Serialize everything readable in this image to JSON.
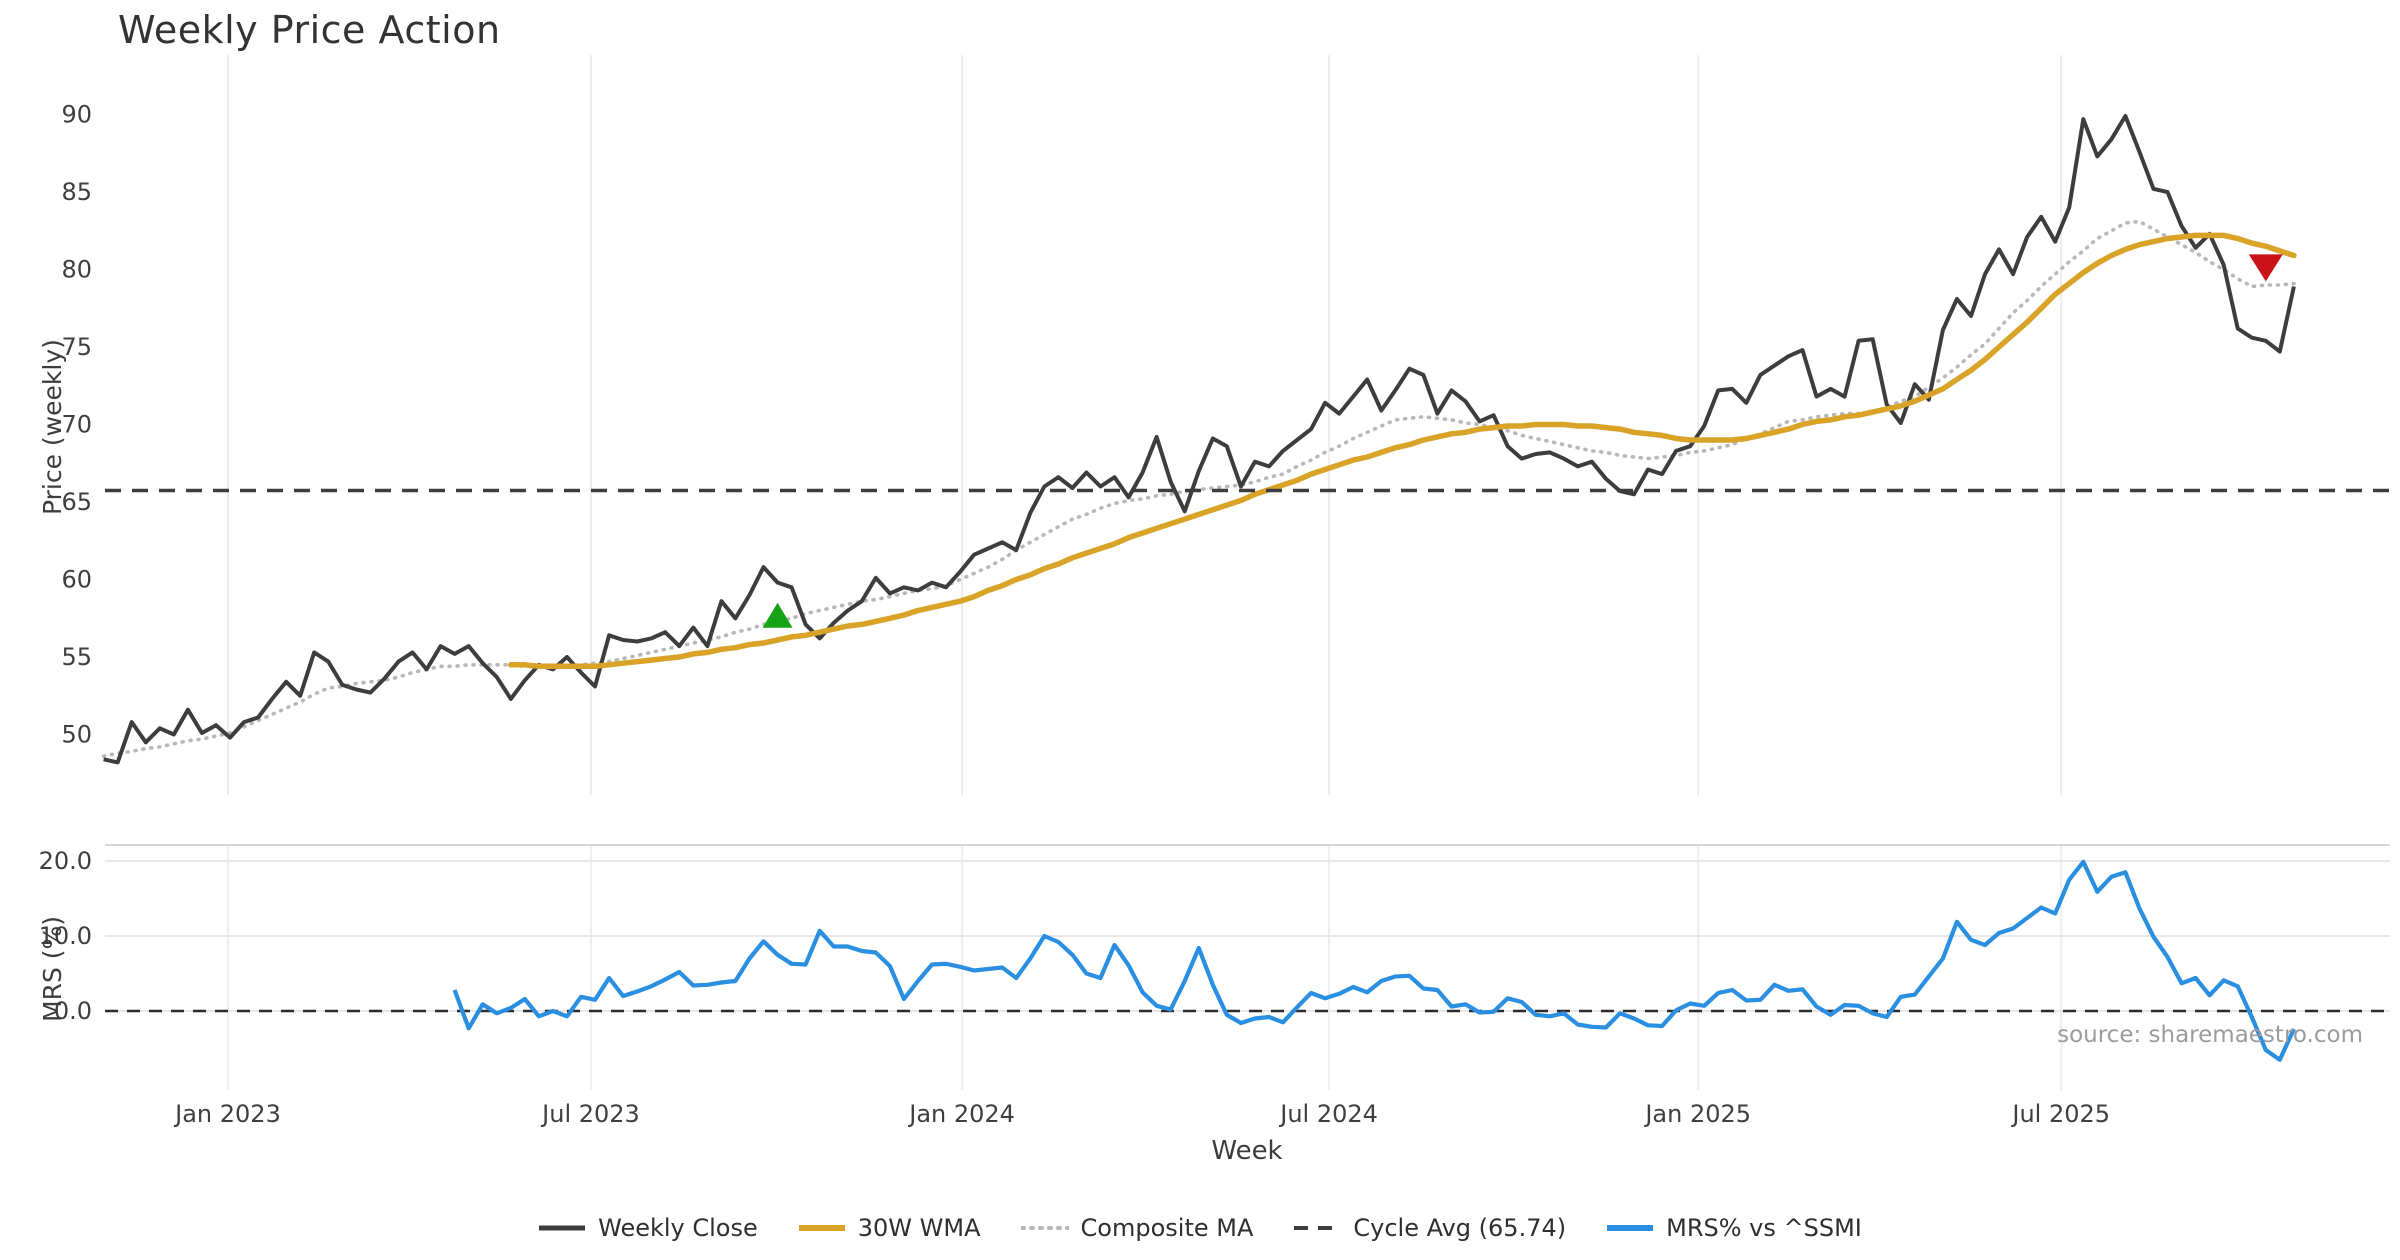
{
  "title": "Weekly Price Action",
  "xlabel": "Week",
  "source": "source: sharemaestro.com",
  "price_panel": {
    "ylabel": "Price (weekly)",
    "yticks": [
      90,
      85,
      80,
      75,
      70,
      65,
      60,
      55,
      50
    ]
  },
  "mrs_panel": {
    "ylabel": "MRS (%)",
    "ytick_labels": [
      "20.0",
      "10.0",
      "0.0"
    ],
    "ytick_values": [
      20,
      10,
      0
    ]
  },
  "xticks": [
    {
      "label": "Jan 2023",
      "week": 8.857
    },
    {
      "label": "Jul 2023",
      "week": 34.714
    },
    {
      "label": "Jan 2024",
      "week": 61.143
    },
    {
      "label": "Jul 2024",
      "week": 87.286
    },
    {
      "label": "Jan 2025",
      "week": 113.571
    },
    {
      "label": "Jul 2025",
      "week": 139.429
    }
  ],
  "legend": [
    {
      "label": "Weekly Close",
      "color": "#3d3d3d",
      "dash": "",
      "width": 5
    },
    {
      "label": "30W WMA",
      "color": "#d8a327",
      "dash": "",
      "width": 6
    },
    {
      "label": "Composite MA",
      "color": "#b8b8b8",
      "dash": "2 7",
      "width": 4
    },
    {
      "label": "Cycle Avg (65.74)",
      "color": "#3d3d3d",
      "dash": "14 10",
      "width": 4
    },
    {
      "label": "MRS% vs ^SSMI",
      "color": "#2a8fe0",
      "dash": "",
      "width": 6
    }
  ],
  "chart_data": [
    {
      "type": "line",
      "title": "Weekly Price Action",
      "ylabel": "Price (weekly)",
      "ylim": [
        47.0,
        94.0
      ],
      "x_axis": {
        "label": "Week",
        "unit": "weekly index, week 0 = first plotted week (late Oct 2022)",
        "tick_weeks": [
          8.857,
          34.714,
          61.143,
          87.286,
          113.571,
          139.429
        ],
        "tick_labels": [
          "Jan 2023",
          "Jul 2023",
          "Jan 2024",
          "Jul 2024",
          "Jan 2025",
          "Jul 2025"
        ]
      },
      "grid": "vertical-only",
      "series": [
        {
          "name": "Weekly Close",
          "color": "#3d3d3d",
          "style": "solid",
          "start_week": 0,
          "values": [
            48.4,
            48.2,
            50.8,
            49.5,
            50.4,
            50.0,
            51.6,
            50.1,
            50.6,
            49.8,
            50.8,
            51.1,
            52.3,
            53.4,
            52.5,
            55.3,
            54.7,
            53.2,
            52.9,
            52.7,
            53.6,
            54.7,
            55.3,
            54.2,
            55.7,
            55.2,
            55.7,
            54.6,
            53.7,
            52.3,
            53.5,
            54.5,
            54.2,
            55.0,
            54.0,
            53.1,
            56.4,
            56.1,
            56.0,
            56.2,
            56.6,
            55.7,
            56.9,
            55.7,
            58.6,
            57.5,
            59.0,
            60.8,
            59.8,
            59.5,
            57.1,
            56.2,
            57.2,
            58.0,
            58.6,
            60.1,
            59.1,
            59.5,
            59.3,
            59.8,
            59.5,
            60.5,
            61.6,
            62.0,
            62.4,
            61.9,
            64.3,
            66.0,
            66.6,
            65.9,
            66.9,
            66.0,
            66.6,
            65.3,
            66.9,
            69.2,
            66.3,
            64.4,
            67.0,
            69.1,
            68.6,
            66.0,
            67.6,
            67.3,
            68.3,
            69.0,
            69.7,
            71.4,
            70.7,
            71.8,
            72.9,
            70.9,
            72.2,
            73.6,
            73.2,
            70.7,
            72.2,
            71.5,
            70.2,
            70.6,
            68.6,
            67.8,
            68.1,
            68.2,
            67.8,
            67.3,
            67.6,
            66.5,
            65.7,
            65.5,
            67.1,
            66.8,
            68.3,
            68.6,
            69.9,
            72.2,
            72.3,
            71.4,
            73.2,
            73.8,
            74.4,
            74.8,
            71.8,
            72.3,
            71.8,
            75.4,
            75.5,
            71.3,
            70.1,
            72.6,
            71.6,
            76.1,
            78.1,
            77.0,
            79.7,
            81.3,
            79.7,
            82.1,
            83.4,
            81.8,
            84.0,
            89.7,
            87.3,
            88.4,
            89.9,
            87.6,
            85.2,
            85.0,
            82.8,
            81.4,
            82.3,
            80.3,
            76.2,
            75.6,
            75.4,
            74.7,
            78.9
          ]
        },
        {
          "name": "30W WMA",
          "color": "#d8a327",
          "style": "solid",
          "start_week": 29,
          "values": [
            54.5,
            54.5,
            54.4,
            54.4,
            54.4,
            54.4,
            54.4,
            54.5,
            54.6,
            54.7,
            54.8,
            54.9,
            55.0,
            55.2,
            55.3,
            55.5,
            55.6,
            55.8,
            55.9,
            56.1,
            56.3,
            56.4,
            56.6,
            56.8,
            57.0,
            57.1,
            57.3,
            57.5,
            57.7,
            58.0,
            58.2,
            58.4,
            58.6,
            58.9,
            59.3,
            59.6,
            60.0,
            60.3,
            60.7,
            61.0,
            61.4,
            61.7,
            62.0,
            62.3,
            62.7,
            63.0,
            63.3,
            63.6,
            63.9,
            64.2,
            64.5,
            64.8,
            65.1,
            65.5,
            65.8,
            66.1,
            66.4,
            66.8,
            67.1,
            67.4,
            67.7,
            67.9,
            68.2,
            68.5,
            68.7,
            69.0,
            69.2,
            69.4,
            69.5,
            69.7,
            69.8,
            69.9,
            69.9,
            70.0,
            70.0,
            70.0,
            69.9,
            69.9,
            69.8,
            69.7,
            69.5,
            69.4,
            69.3,
            69.1,
            69.0,
            69.0,
            69.0,
            69.0,
            69.1,
            69.3,
            69.5,
            69.7,
            70.0,
            70.2,
            70.3,
            70.5,
            70.6,
            70.8,
            71.0,
            71.2,
            71.5,
            71.9,
            72.3,
            72.9,
            73.5,
            74.2,
            75.0,
            75.8,
            76.6,
            77.5,
            78.4,
            79.1,
            79.8,
            80.4,
            80.9,
            81.3,
            81.6,
            81.8,
            82.0,
            82.1,
            82.2,
            82.2,
            82.2,
            82.0,
            81.7,
            81.5,
            81.2,
            80.9
          ]
        },
        {
          "name": "Composite MA",
          "color": "#b8b8b8",
          "style": "dotted",
          "start_week": 0,
          "values": [
            48.6,
            48.8,
            48.9,
            49.1,
            49.2,
            49.4,
            49.6,
            49.7,
            49.9,
            50.1,
            50.5,
            50.9,
            51.3,
            51.7,
            52.1,
            52.6,
            53.0,
            53.1,
            53.3,
            53.4,
            53.5,
            53.7,
            54.0,
            54.2,
            54.4,
            54.4,
            54.5,
            54.5,
            54.5,
            54.5,
            54.4,
            54.4,
            54.3,
            54.4,
            54.5,
            54.6,
            54.7,
            54.9,
            55.1,
            55.3,
            55.5,
            55.7,
            55.9,
            56.1,
            56.3,
            56.6,
            56.8,
            57.1,
            57.3,
            57.5,
            57.8,
            58.0,
            58.2,
            58.4,
            58.6,
            58.7,
            58.9,
            59.1,
            59.3,
            59.4,
            59.6,
            60.0,
            60.4,
            60.8,
            61.3,
            61.9,
            62.4,
            62.9,
            63.4,
            63.9,
            64.2,
            64.6,
            64.9,
            65.1,
            65.2,
            65.4,
            65.5,
            65.7,
            65.8,
            65.9,
            66.0,
            66.1,
            66.3,
            66.6,
            66.8,
            67.3,
            67.7,
            68.2,
            68.6,
            69.1,
            69.5,
            69.9,
            70.3,
            70.4,
            70.5,
            70.4,
            70.3,
            70.1,
            70.0,
            69.8,
            69.6,
            69.3,
            69.1,
            68.9,
            68.7,
            68.5,
            68.3,
            68.2,
            68.0,
            67.9,
            67.8,
            67.9,
            68.0,
            68.2,
            68.3,
            68.5,
            68.7,
            69.1,
            69.4,
            69.8,
            70.2,
            70.3,
            70.5,
            70.6,
            70.7,
            70.7,
            70.8,
            71.1,
            71.5,
            71.8,
            72.4,
            73.0,
            73.7,
            74.5,
            75.2,
            76.2,
            77.2,
            78.0,
            78.9,
            79.7,
            80.5,
            81.2,
            82.0,
            82.5,
            83.0,
            83.1,
            82.6,
            82.1,
            81.6,
            81.1,
            80.5,
            80.0,
            79.4,
            78.9,
            79.0,
            79.0,
            79.1
          ]
        },
        {
          "name": "Cycle Avg",
          "color": "#3d3d3d",
          "style": "dashed",
          "constant_value": 65.74
        }
      ],
      "markers": [
        {
          "type": "triangle-up",
          "color": "#17a317",
          "week": 48,
          "value": 57.6
        },
        {
          "type": "triangle-down",
          "color": "#cb1118",
          "week": 154,
          "value": 80.2
        }
      ]
    },
    {
      "type": "line",
      "ylabel": "MRS (%)",
      "ylim": [
        -11.0,
        22.2
      ],
      "grid": "both",
      "series": [
        {
          "name": "MRS% vs ^SSMI",
          "color": "#2a8fe0",
          "style": "solid",
          "start_week": 25,
          "values": [
            2.8,
            -2.3,
            0.9,
            -0.3,
            0.4,
            1.6,
            -0.7,
            0.0,
            -0.7,
            1.9,
            1.5,
            4.4,
            2.0,
            2.6,
            3.3,
            4.2,
            5.2,
            3.4,
            3.5,
            3.8,
            4.0,
            7.0,
            9.3,
            7.5,
            6.3,
            6.2,
            10.7,
            8.6,
            8.6,
            8.0,
            7.8,
            6.0,
            1.6,
            4.0,
            6.2,
            6.3,
            5.9,
            5.4,
            5.6,
            5.8,
            4.4,
            7.0,
            10.0,
            9.2,
            7.5,
            5.0,
            4.4,
            8.8,
            6.1,
            2.5,
            0.7,
            0.2,
            4.0,
            8.4,
            3.5,
            -0.5,
            -1.6,
            -1.0,
            -0.8,
            -1.5,
            0.5,
            2.4,
            1.7,
            2.3,
            3.2,
            2.5,
            4.0,
            4.6,
            4.7,
            3.0,
            2.8,
            0.6,
            0.9,
            -0.2,
            -0.1,
            1.7,
            1.2,
            -0.5,
            -0.7,
            -0.3,
            -1.8,
            -2.1,
            -2.2,
            -0.3,
            -1.0,
            -1.9,
            -2.0,
            0.1,
            1.0,
            0.7,
            2.4,
            2.8,
            1.4,
            1.5,
            3.5,
            2.7,
            2.9,
            0.6,
            -0.5,
            0.8,
            0.7,
            -0.3,
            -0.8,
            1.9,
            2.2,
            4.6,
            7.0,
            11.9,
            9.5,
            8.8,
            10.4,
            11.0,
            12.4,
            13.8,
            13.0,
            17.5,
            19.9,
            15.9,
            17.9,
            18.5,
            13.7,
            9.9,
            7.2,
            3.7,
            4.4,
            2.1,
            4.1,
            3.3,
            -0.8,
            -5.2,
            -6.5,
            -2.4
          ]
        },
        {
          "name": "Zero line",
          "color": "#2b2b2b",
          "style": "dashed",
          "constant_value": 0
        }
      ],
      "annotations": [
        {
          "text": "source: sharemaestro.com",
          "position": "bottom-right"
        }
      ]
    }
  ]
}
